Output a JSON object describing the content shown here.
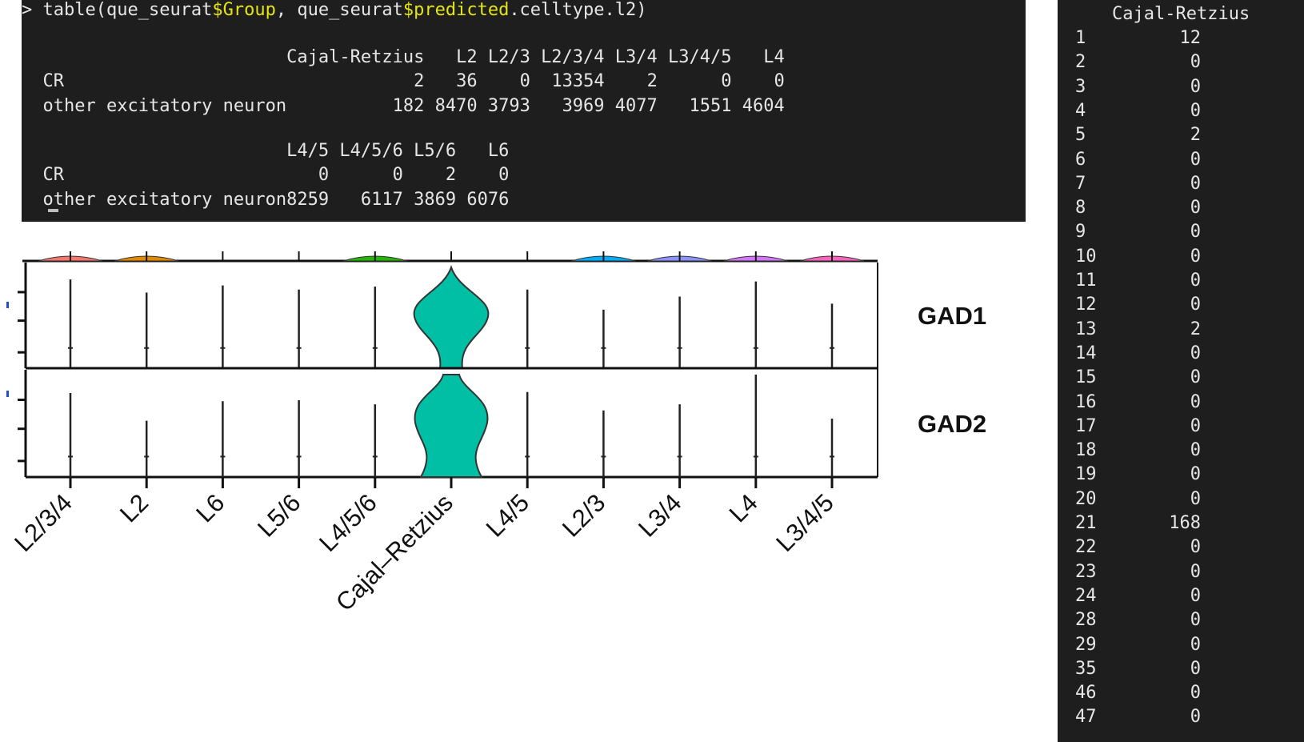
{
  "console": {
    "prompt": ">",
    "command_parts": [
      {
        "text": "table(que_seurat",
        "color": "normal"
      },
      {
        "text": "$Group",
        "color": "yellow"
      },
      {
        "text": ", que_seurat",
        "color": "normal"
      },
      {
        "text": "$predicted",
        "color": "yellow"
      },
      {
        "text": ".celltype.l2)",
        "color": "normal"
      }
    ],
    "table_blocks": [
      {
        "columns": [
          "Cajal-Retzius",
          "L2",
          "L2/3",
          "L2/3/4",
          "L3/4",
          "L3/4/5",
          "L4"
        ],
        "rows": [
          {
            "label": "CR",
            "values": [
              "2",
              "36",
              "0",
              "13354",
              "2",
              "0",
              "0"
            ]
          },
          {
            "label": "other excitatory neuron",
            "values": [
              "182",
              "8470",
              "3793",
              "3969",
              "4077",
              "1551",
              "4604"
            ]
          }
        ]
      },
      {
        "columns": [
          "L4/5",
          "L4/5/6",
          "L5/6",
          "L6"
        ],
        "rows": [
          {
            "label": "CR",
            "values": [
              "0",
              "0",
              "2",
              "0"
            ]
          },
          {
            "label": "other excitatory neuron",
            "values": [
              "8259",
              "6117",
              "3869",
              "6076"
            ]
          }
        ]
      }
    ]
  },
  "side_console": {
    "header": "Cajal-Retzius",
    "rows": [
      {
        "n": "1",
        "v": "12"
      },
      {
        "n": "2",
        "v": "0"
      },
      {
        "n": "3",
        "v": "0"
      },
      {
        "n": "4",
        "v": "0"
      },
      {
        "n": "5",
        "v": "2"
      },
      {
        "n": "6",
        "v": "0"
      },
      {
        "n": "7",
        "v": "0"
      },
      {
        "n": "8",
        "v": "0"
      },
      {
        "n": "9",
        "v": "0"
      },
      {
        "n": "10",
        "v": "0"
      },
      {
        "n": "11",
        "v": "0"
      },
      {
        "n": "12",
        "v": "0"
      },
      {
        "n": "13",
        "v": "2"
      },
      {
        "n": "14",
        "v": "0"
      },
      {
        "n": "15",
        "v": "0"
      },
      {
        "n": "16",
        "v": "0"
      },
      {
        "n": "17",
        "v": "0"
      },
      {
        "n": "18",
        "v": "0"
      },
      {
        "n": "19",
        "v": "0"
      },
      {
        "n": "20",
        "v": "0"
      },
      {
        "n": "21",
        "v": "168"
      },
      {
        "n": "22",
        "v": "0"
      },
      {
        "n": "23",
        "v": "0"
      },
      {
        "n": "24",
        "v": "0"
      },
      {
        "n": "28",
        "v": "0"
      },
      {
        "n": "29",
        "v": "0"
      },
      {
        "n": "35",
        "v": "0"
      },
      {
        "n": "46",
        "v": "0"
      },
      {
        "n": "47",
        "v": "0"
      }
    ]
  },
  "chart_data": {
    "type": "violin",
    "categories": [
      "L2/3/4",
      "L2",
      "L6",
      "L5/6",
      "L4/5/6",
      "Cajal–Retzius",
      "L4/5",
      "L2/3",
      "L3/4",
      "L4",
      "L3/4/5"
    ],
    "panels": [
      {
        "gene": "GAD1",
        "relative_max": [
          0.88,
          0.75,
          0.82,
          0.78,
          0.81,
          1.0,
          0.78,
          0.58,
          0.71,
          0.86,
          0.64
        ]
      },
      {
        "gene": "GAD2",
        "relative_max": [
          0.82,
          0.55,
          0.74,
          0.75,
          0.71,
          1.0,
          0.83,
          0.65,
          0.71,
          1.0,
          0.57
        ]
      }
    ],
    "violin_colors": [
      "#f8766d",
      "#e18a00",
      "#be9c00",
      "#8cab00",
      "#24b700",
      "#00c1a0",
      "#00bbda",
      "#00acfc",
      "#8b93ff",
      "#d575fe",
      "#ff62bc"
    ],
    "highlight_category": "Cajal–Retzius",
    "highlight_color": "#00bfa5"
  }
}
